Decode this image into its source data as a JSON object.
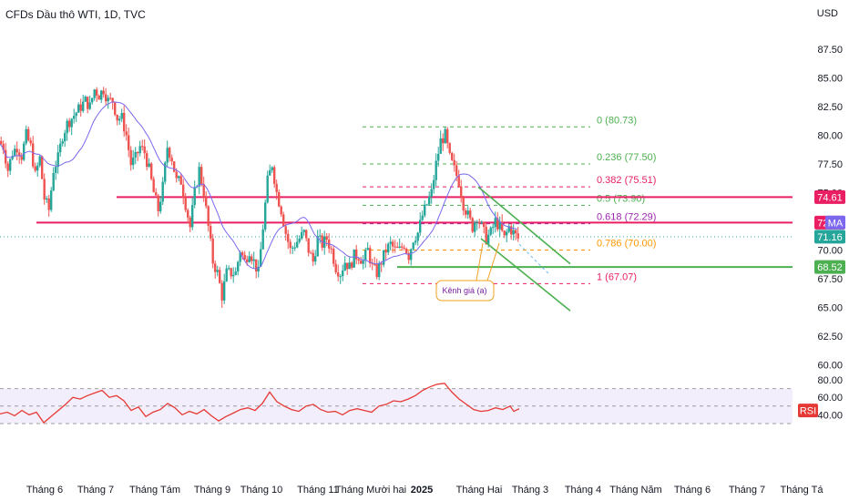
{
  "header": {
    "title": "CFDs Dầu thô WTI, 1D, TVC",
    "currency": "USD"
  },
  "colors": {
    "up": "#26a69a",
    "down": "#ef5350",
    "ma": "#7b68ee",
    "rsi": "#e53935",
    "resistance": "#e91e63",
    "support": "#4caf50",
    "rsi_band": "#f3eefb"
  },
  "chart_data": [
    {
      "type": "candlestick",
      "title": "CFDs Dầu thô WTI, 1D, TVC",
      "ylim": [
        62.5,
        87.5
      ],
      "yticks": [
        "87.50",
        "85.00",
        "82.50",
        "80.00",
        "77.50",
        "75.00",
        "72.50",
        "70.00",
        "67.50",
        "65.00",
        "62.50",
        "60.00"
      ],
      "x_labels": [
        "Tháng 6",
        "Tháng 7",
        "Tháng Tám",
        "Tháng 9",
        "Tháng 10",
        "Tháng 11",
        "Tháng Mười hai",
        "2025",
        "Tháng Hai",
        "Tháng 3",
        "Tháng 4",
        "Tháng Năm",
        "Tháng 6",
        "Tháng 7",
        "Tháng Tá"
      ],
      "close_approx": [
        [
          0,
          79.5
        ],
        [
          5,
          79
        ],
        [
          10,
          77
        ],
        [
          15,
          78.5
        ],
        [
          20,
          79
        ],
        [
          25,
          78.2
        ],
        [
          30,
          80
        ],
        [
          35,
          79
        ],
        [
          40,
          76.5
        ],
        [
          45,
          78
        ],
        [
          50,
          74.5
        ],
        [
          55,
          73.5
        ],
        [
          60,
          77
        ],
        [
          65,
          78
        ],
        [
          70,
          80
        ],
        [
          75,
          81
        ],
        [
          80,
          81.5
        ],
        [
          85,
          82
        ],
        [
          90,
          82.5
        ],
        [
          95,
          83
        ],
        [
          100,
          82.5
        ],
        [
          105,
          84
        ],
        [
          110,
          83.5
        ],
        [
          115,
          84
        ],
        [
          120,
          83
        ],
        [
          125,
          83
        ],
        [
          130,
          81.5
        ],
        [
          135,
          81.5
        ],
        [
          140,
          80
        ],
        [
          145,
          77.5
        ],
        [
          150,
          78
        ],
        [
          155,
          79
        ],
        [
          160,
          78.5
        ],
        [
          165,
          77
        ],
        [
          170,
          75
        ],
        [
          175,
          73.5
        ],
        [
          180,
          75.5
        ],
        [
          185,
          79
        ],
        [
          190,
          78
        ],
        [
          195,
          76
        ],
        [
          200,
          76
        ],
        [
          205,
          74
        ],
        [
          210,
          72
        ],
        [
          215,
          75
        ],
        [
          220,
          77
        ],
        [
          225,
          75
        ],
        [
          230,
          72
        ],
        [
          235,
          69
        ],
        [
          240,
          68
        ],
        [
          245,
          66
        ],
        [
          250,
          68
        ],
        [
          255,
          68
        ],
        [
          260,
          68
        ],
        [
          265,
          70
        ],
        [
          270,
          69
        ],
        [
          275,
          70
        ],
        [
          280,
          69
        ],
        [
          285,
          68
        ],
        [
          290,
          72
        ],
        [
          295,
          76
        ],
        [
          300,
          77.5
        ],
        [
          305,
          75
        ],
        [
          310,
          73.5
        ],
        [
          315,
          71.5
        ],
        [
          320,
          70
        ],
        [
          325,
          70.5
        ],
        [
          330,
          71
        ],
        [
          335,
          71.5
        ],
        [
          340,
          70
        ],
        [
          345,
          69
        ],
        [
          350,
          71
        ],
        [
          355,
          70.5
        ],
        [
          360,
          71
        ],
        [
          365,
          70
        ],
        [
          370,
          68.5
        ],
        [
          375,
          68
        ],
        [
          380,
          69
        ],
        [
          385,
          68.5
        ],
        [
          390,
          69.5
        ],
        [
          395,
          69.5
        ],
        [
          400,
          69
        ],
        [
          405,
          70
        ],
        [
          410,
          68.5
        ],
        [
          415,
          68
        ],
        [
          420,
          69
        ],
        [
          425,
          70
        ],
        [
          430,
          70.5
        ],
        [
          435,
          70
        ],
        [
          440,
          70
        ],
        [
          445,
          70.5
        ],
        [
          450,
          69.5
        ],
        [
          455,
          71
        ],
        [
          460,
          71.5
        ],
        [
          465,
          73
        ],
        [
          470,
          74
        ],
        [
          475,
          75
        ],
        [
          480,
          77.5
        ],
        [
          485,
          79.5
        ],
        [
          490,
          80
        ],
        [
          495,
          78
        ],
        [
          500,
          77
        ],
        [
          505,
          76
        ],
        [
          510,
          74
        ],
        [
          515,
          73
        ],
        [
          520,
          72
        ],
        [
          525,
          73
        ],
        [
          530,
          72
        ],
        [
          535,
          71
        ],
        [
          540,
          71.5
        ],
        [
          545,
          72.5
        ],
        [
          550,
          72
        ],
        [
          555,
          71
        ],
        [
          560,
          72
        ],
        [
          565,
          71.5
        ],
        [
          570,
          71
        ]
      ],
      "moving_average_label": "MA",
      "horizontal_levels": [
        {
          "label": "74.61",
          "value": 74.61,
          "color": "#e91e63"
        },
        {
          "label": "72.39",
          "value": 72.39,
          "color": "#e91e63"
        },
        {
          "label": "68.52",
          "value": 68.52,
          "color": "#4caf50"
        }
      ],
      "price_tags": [
        {
          "label": "74.61",
          "value": 74.61,
          "color": "#e91e63"
        },
        {
          "label": "72.39",
          "value": 72.39,
          "color": "#e91e63"
        },
        {
          "label": "MA",
          "value": 72.4,
          "color": "#7b68ee"
        },
        {
          "label": "71.16",
          "value": 71.16,
          "color": "#26a69a"
        },
        {
          "label": "68.52",
          "value": 68.52,
          "color": "#4caf50"
        }
      ],
      "fibonacci": [
        {
          "label": "0 (80.73)",
          "value": 80.73,
          "color": "#4caf50"
        },
        {
          "label": "0.236 (77.50)",
          "value": 77.5,
          "color": "#4caf50"
        },
        {
          "label": "0.382 (75.51)",
          "value": 75.51,
          "color": "#e91e63"
        },
        {
          "label": "0.5 (73.90)",
          "value": 73.9,
          "color": "#4caf50"
        },
        {
          "label": "0.618 (72.29)",
          "value": 72.29,
          "color": "#9c27b0"
        },
        {
          "label": "0.786 (70.00)",
          "value": 70.0,
          "color": "#ff9800"
        },
        {
          "label": "1 (67.07)",
          "value": 67.07,
          "color": "#e91e63"
        }
      ],
      "annotation": "Kênh giá (a)"
    },
    {
      "type": "line",
      "title": "RSI",
      "ylim": [
        30,
        80
      ],
      "yticks": [
        "80.00",
        "60.00",
        "40.00"
      ],
      "band": [
        30,
        70
      ],
      "legend_label": "RSI",
      "values_approx": [
        [
          0,
          41
        ],
        [
          8,
          43
        ],
        [
          16,
          39
        ],
        [
          24,
          45
        ],
        [
          32,
          40
        ],
        [
          40,
          43
        ],
        [
          48,
          31
        ],
        [
          56,
          38
        ],
        [
          64,
          45
        ],
        [
          72,
          52
        ],
        [
          80,
          60
        ],
        [
          88,
          58
        ],
        [
          96,
          62
        ],
        [
          104,
          65
        ],
        [
          112,
          68
        ],
        [
          120,
          60
        ],
        [
          128,
          62
        ],
        [
          136,
          56
        ],
        [
          144,
          45
        ],
        [
          152,
          49
        ],
        [
          160,
          38
        ],
        [
          168,
          43
        ],
        [
          176,
          46
        ],
        [
          184,
          53
        ],
        [
          192,
          48
        ],
        [
          200,
          40
        ],
        [
          208,
          44
        ],
        [
          216,
          41
        ],
        [
          224,
          46
        ],
        [
          232,
          39
        ],
        [
          240,
          33
        ],
        [
          248,
          38
        ],
        [
          256,
          42
        ],
        [
          264,
          46
        ],
        [
          272,
          48
        ],
        [
          280,
          45
        ],
        [
          288,
          53
        ],
        [
          296,
          66
        ],
        [
          304,
          55
        ],
        [
          312,
          50
        ],
        [
          320,
          46
        ],
        [
          328,
          44
        ],
        [
          336,
          50
        ],
        [
          344,
          52
        ],
        [
          352,
          46
        ],
        [
          360,
          43
        ],
        [
          368,
          44
        ],
        [
          376,
          40
        ],
        [
          384,
          45
        ],
        [
          392,
          47
        ],
        [
          400,
          45
        ],
        [
          408,
          43
        ],
        [
          416,
          50
        ],
        [
          424,
          52
        ],
        [
          432,
          56
        ],
        [
          440,
          55
        ],
        [
          448,
          58
        ],
        [
          456,
          62
        ],
        [
          464,
          68
        ],
        [
          472,
          72
        ],
        [
          480,
          75
        ],
        [
          488,
          76
        ],
        [
          496,
          66
        ],
        [
          504,
          58
        ],
        [
          512,
          52
        ],
        [
          520,
          46
        ],
        [
          528,
          44
        ],
        [
          536,
          45
        ],
        [
          544,
          48
        ],
        [
          552,
          46
        ],
        [
          560,
          50
        ],
        [
          564,
          44
        ],
        [
          570,
          47
        ]
      ]
    }
  ]
}
